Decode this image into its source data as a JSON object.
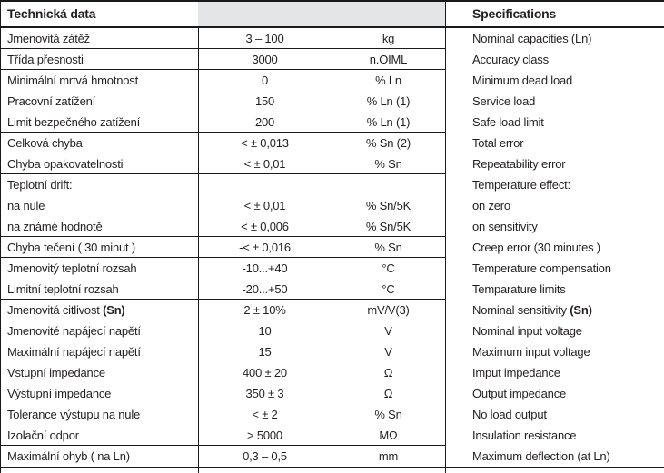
{
  "header": {
    "left_title": "Technická data",
    "right_title": "Specifications"
  },
  "colors": {
    "border": "#1a1a1a",
    "header_cell_fill": "#e4e5e7",
    "text": "#231f20"
  },
  "table": {
    "columns": [
      "czech_parameter",
      "value",
      "unit",
      "english_parameter"
    ],
    "rows": [
      {
        "cz": "Jmenovitá zátěž",
        "val": "3 – 100",
        "unit": "kg",
        "en": "Nominal capacities (Ln)",
        "sep": true
      },
      {
        "cz": "Třída přesnosti",
        "val": "3000",
        "unit": "n.OIML",
        "en": "Accuracy class",
        "sep": true
      },
      {
        "cz": "Minimální mrtvá hmotnost",
        "val": "0",
        "unit": "% Ln",
        "en": "Minimum dead load",
        "sep": false
      },
      {
        "cz": "Pracovní zatížení",
        "val": "150",
        "unit": "% Ln (1)",
        "en": "Service load",
        "sep": false
      },
      {
        "cz": "Limit bezpečného zatížení",
        "val": "200",
        "unit": "% Ln (1)",
        "en": "Safe load limit",
        "sep": true
      },
      {
        "cz": "Celková chyba",
        "val": "< ± 0,013",
        "unit": "% Sn (2)",
        "en": "Total error",
        "sep": false
      },
      {
        "cz": "Chyba opakovatelnosti",
        "val": "< ± 0,01",
        "unit": "% Sn",
        "en": "Repeatability error",
        "sep": true
      },
      {
        "cz": "Teplotní drift:",
        "val": "",
        "unit": "",
        "en": "Temperature effect:",
        "sep": false
      },
      {
        "cz": "na nule",
        "val": "< ± 0,01",
        "unit": "% Sn/5K",
        "en": "on zero",
        "sep": false
      },
      {
        "cz": "na známé hodnotě",
        "val": "< ± 0,006",
        "unit": "% Sn/5K",
        "en": "on sensitivity",
        "sep": true
      },
      {
        "cz": "Chyba tečení ( 30 minut )",
        "val": "-< ± 0,016",
        "unit": "% Sn",
        "en": "Creep error (30 minutes )",
        "sep": true
      },
      {
        "cz": "Jmenovitý teplotní rozsah",
        "val": "-10...+40",
        "unit": "°C",
        "en": "Temperature compensation",
        "sep": false
      },
      {
        "cz": "Limitní teplotní rozsah",
        "val": "-20...+50",
        "unit": "°C",
        "en": "Temparature limits",
        "sep": true
      },
      {
        "cz": "Jmenovitá citlivost ",
        "cz_bold": "(Sn)",
        "val": "2 ± 10%",
        "unit": "mV/V(3)",
        "en": "Nominal sensitivity ",
        "en_bold": "(Sn)",
        "sep": false
      },
      {
        "cz": "Jmenovité napájecí napětí",
        "val": "10",
        "unit": "V",
        "en": "Nominal input voltage",
        "sep": false
      },
      {
        "cz": "Maximální napájecí napětí",
        "val": "15",
        "unit": "V",
        "en": "Maximum input voltage",
        "sep": false
      },
      {
        "cz": "Vstupní impedance",
        "val": "400 ± 20",
        "unit": "Ω",
        "en": "Imput impedance",
        "sep": false
      },
      {
        "cz": "Výstupní impedance",
        "val": "350 ± 3",
        "unit": "Ω",
        "en": "Output impedance",
        "sep": false
      },
      {
        "cz": "Tolerance výstupu na nule",
        "val": "< ± 2",
        "unit": "% Sn",
        "en": "No load output",
        "sep": false
      },
      {
        "cz": "Izolační odpor",
        "val": "> 5000",
        "unit": "MΩ",
        "en": "Insulation resistance",
        "sep": true
      },
      {
        "cz": "Maximální ohyb ( na Ln)",
        "val": "0,3 – 0,5",
        "unit": "mm",
        "en": "Maximum deflection (at Ln)",
        "sep": false
      }
    ]
  }
}
